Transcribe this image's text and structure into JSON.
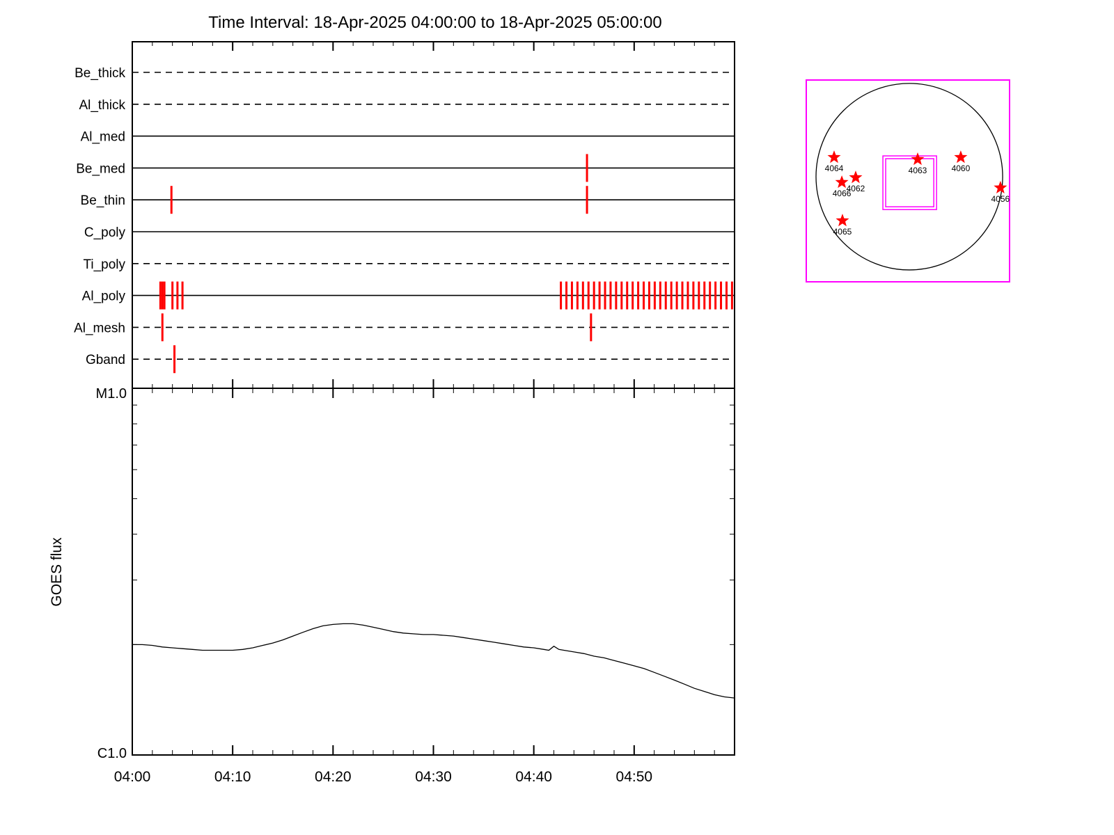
{
  "title": "Time Interval: 18-Apr-2025 04:00:00 to 18-Apr-2025 05:00:00",
  "colors": {
    "event": "#ff0000",
    "frame": "#ff00ff",
    "curve": "#000000"
  },
  "chart_data": [
    {
      "type": "timeline",
      "title": "Instrument filter activity vs time",
      "x_range_minutes": [
        0,
        60
      ],
      "x_start_label": "04:00",
      "x_end_label": "05:00",
      "rows": [
        {
          "label": "Be_thick",
          "line_style": "dashed",
          "events_min": []
        },
        {
          "label": "Al_thick",
          "line_style": "dashed",
          "events_min": []
        },
        {
          "label": "Al_med",
          "line_style": "solid",
          "events_min": []
        },
        {
          "label": "Be_med",
          "line_style": "solid",
          "events_min": [
            45.3
          ]
        },
        {
          "label": "Be_thin",
          "line_style": "solid",
          "events_min": [
            3.9,
            45.3
          ]
        },
        {
          "label": "C_poly",
          "line_style": "solid",
          "events_min": []
        },
        {
          "label": "Ti_poly",
          "line_style": "dashed",
          "events_min": []
        },
        {
          "label": "Al_poly",
          "line_style": "solid",
          "events_min": [
            2.8,
            3.0,
            3.2,
            4.0,
            4.5,
            5.0,
            42.7,
            43.25,
            43.8,
            44.35,
            44.9,
            45.45,
            46.0,
            46.55,
            47.1,
            47.65,
            48.2,
            48.75,
            49.3,
            49.85,
            50.4,
            50.95,
            51.5,
            52.05,
            52.6,
            53.15,
            53.7,
            54.25,
            54.8,
            55.35,
            55.9,
            56.45,
            57.0,
            57.55,
            58.1,
            58.65,
            59.2,
            59.75
          ]
        },
        {
          "label": "Al_mesh",
          "line_style": "dashed",
          "events_min": [
            3.0,
            45.7
          ]
        },
        {
          "label": "Gband",
          "line_style": "dashed",
          "events_min": [
            4.2
          ]
        }
      ]
    },
    {
      "type": "line",
      "title": "GOES flux",
      "ylabel": "GOES flux",
      "y_axis": {
        "top_label": "M1.0",
        "bottom_label": "C1.0",
        "scale": "log",
        "range_c_units": [
          1,
          10
        ]
      },
      "x_tick_labels": [
        "04:00",
        "04:10",
        "04:20",
        "04:30",
        "04:40",
        "04:50"
      ],
      "x_minutes": [
        0,
        1,
        2,
        3,
        4,
        5,
        6,
        7,
        8,
        9,
        10,
        11,
        12,
        13,
        14,
        15,
        16,
        17,
        18,
        19,
        20,
        21,
        22,
        23,
        24,
        25,
        26,
        27,
        28,
        29,
        30,
        31,
        32,
        33,
        34,
        35,
        36,
        37,
        38,
        39,
        40,
        41,
        41.5,
        42,
        42.5,
        43,
        44,
        45,
        46,
        47,
        48,
        49,
        50,
        51,
        52,
        53,
        54,
        55,
        56,
        57,
        58,
        59,
        60
      ],
      "flux_c_units": [
        2.0,
        2.0,
        1.99,
        1.97,
        1.96,
        1.95,
        1.94,
        1.93,
        1.93,
        1.93,
        1.93,
        1.94,
        1.96,
        1.99,
        2.02,
        2.06,
        2.11,
        2.16,
        2.21,
        2.25,
        2.27,
        2.28,
        2.28,
        2.26,
        2.23,
        2.2,
        2.17,
        2.15,
        2.14,
        2.13,
        2.13,
        2.12,
        2.11,
        2.09,
        2.07,
        2.05,
        2.03,
        2.01,
        1.99,
        1.97,
        1.96,
        1.94,
        1.93,
        1.98,
        1.94,
        1.93,
        1.91,
        1.89,
        1.86,
        1.84,
        1.81,
        1.78,
        1.75,
        1.72,
        1.68,
        1.64,
        1.6,
        1.56,
        1.52,
        1.49,
        1.46,
        1.44,
        1.43
      ]
    },
    {
      "type": "map",
      "title": "Solar disk with flagged active regions",
      "disk": {
        "cx": 0.507,
        "cy": 0.479,
        "r": 0.459
      },
      "fov_box": {
        "x": 0.377,
        "y": 0.376,
        "w": 0.264,
        "h": 0.266
      },
      "regions": [
        {
          "label": "4064",
          "x": 0.137,
          "y": 0.383
        },
        {
          "label": "4066",
          "x": 0.175,
          "y": 0.507
        },
        {
          "label": "4062",
          "x": 0.243,
          "y": 0.483
        },
        {
          "label": "4063",
          "x": 0.548,
          "y": 0.393
        },
        {
          "label": "4060",
          "x": 0.76,
          "y": 0.383
        },
        {
          "label": "4056",
          "x": 0.955,
          "y": 0.534
        },
        {
          "label": "4065",
          "x": 0.178,
          "y": 0.697
        }
      ]
    }
  ]
}
